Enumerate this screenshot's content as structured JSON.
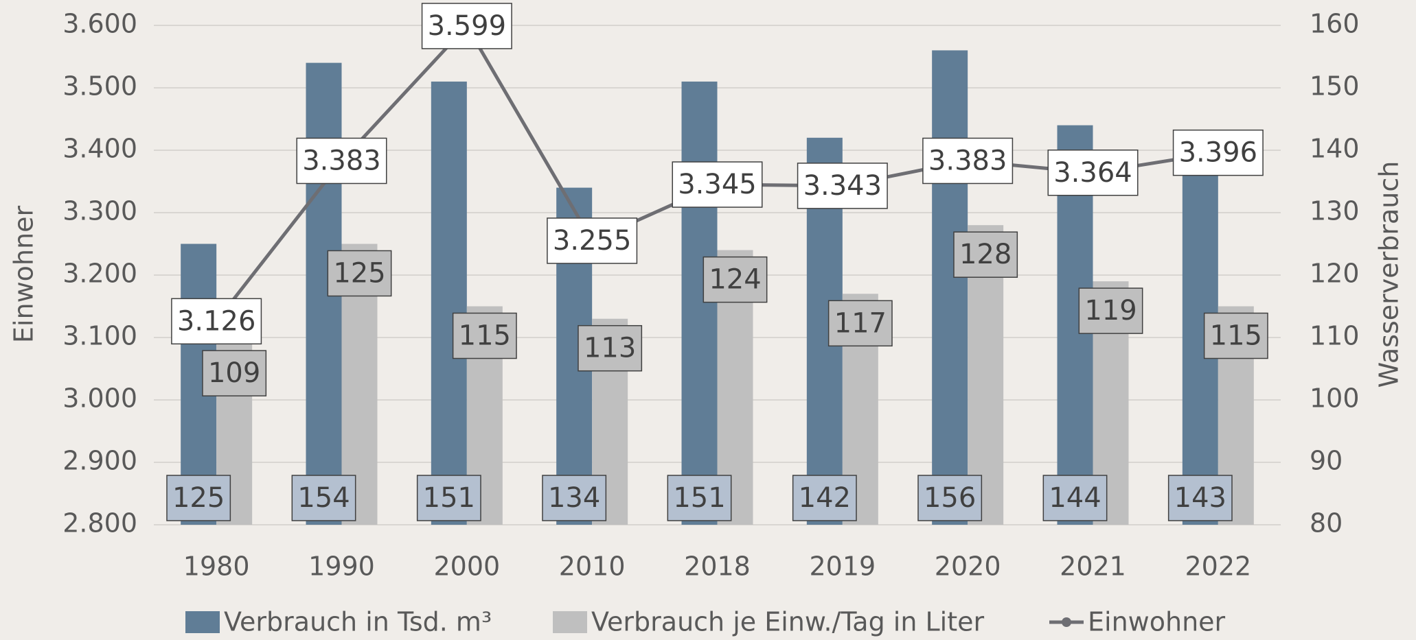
{
  "chart_data": {
    "type": "bar",
    "categories": [
      "1980",
      "1990",
      "2000",
      "2010",
      "2018",
      "2019",
      "2020",
      "2021",
      "2022"
    ],
    "ylabel": "Einwohner",
    "y2label": "Wasserverbrauch",
    "ylim": [
      2800,
      3600
    ],
    "yticks": [
      {
        "value": 2800,
        "label": "2.800"
      },
      {
        "value": 2900,
        "label": "2.900"
      },
      {
        "value": 3000,
        "label": "3.000"
      },
      {
        "value": 3100,
        "label": "3.100"
      },
      {
        "value": 3200,
        "label": "3.200"
      },
      {
        "value": 3300,
        "label": "3.300"
      },
      {
        "value": 3400,
        "label": "3.400"
      },
      {
        "value": 3500,
        "label": "3.500"
      },
      {
        "value": 3600,
        "label": "3.600"
      }
    ],
    "y2lim": [
      80,
      160
    ],
    "y2ticks": [
      80,
      90,
      100,
      110,
      120,
      130,
      140,
      150,
      160
    ],
    "grid": true,
    "legend": "bottom",
    "series": [
      {
        "name": "Verbrauch in Tsd. m³",
        "type": "bar",
        "axis": "y2",
        "color": "#607d96",
        "values": [
          125,
          154,
          151,
          134,
          151,
          142,
          156,
          144,
          143
        ]
      },
      {
        "name": "Verbrauch je Einw./Tag in Liter",
        "type": "bar",
        "axis": "y2",
        "color": "#bfbfbf",
        "values": [
          109,
          125,
          115,
          113,
          124,
          117,
          128,
          119,
          115
        ]
      },
      {
        "name": "Einwohner",
        "type": "line",
        "color": "#6e6e73",
        "values": [
          3126,
          3383,
          3599,
          3255,
          3345,
          3343,
          3383,
          3364,
          3396
        ],
        "value_labels": [
          "3.126",
          "3.383",
          "3.599",
          "3.255",
          "3.345",
          "3.343",
          "3.383",
          "3.364",
          "3.396"
        ]
      }
    ]
  }
}
